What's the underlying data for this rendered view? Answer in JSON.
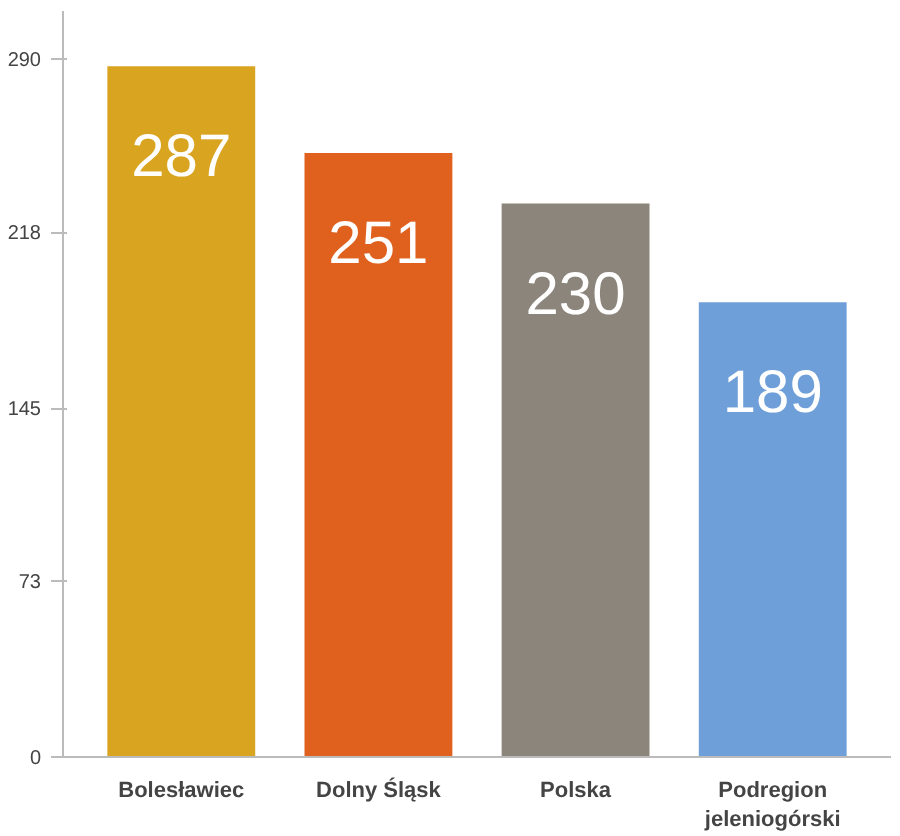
{
  "chart_data": {
    "type": "bar",
    "categories": [
      "Bolesławiec",
      "Dolny Śląsk",
      "Polska",
      "Podregion\njeleniogórski"
    ],
    "values": [
      287,
      251,
      230,
      189
    ],
    "colors": [
      "#d9a420",
      "#e0601e",
      "#8c857b",
      "#6f9fd9"
    ],
    "ylim": [
      0,
      310
    ],
    "yticks": [
      0,
      73,
      145,
      218,
      290
    ],
    "data_labels": true,
    "grid": false
  }
}
